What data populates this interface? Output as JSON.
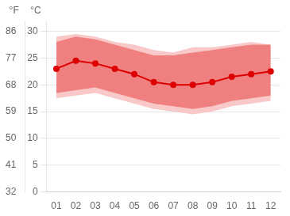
{
  "chart_data": {
    "type": "line",
    "x": [
      1,
      2,
      3,
      4,
      5,
      6,
      7,
      8,
      9,
      10,
      11,
      12
    ],
    "series": [
      {
        "type": "band",
        "color": "#f9c8c8",
        "low": [
          17.5,
          18.0,
          18.5,
          17.5,
          16.5,
          15.5,
          15.0,
          14.5,
          15.0,
          16.0,
          16.5,
          17.0
        ],
        "high": [
          29.0,
          29.5,
          29.0,
          28.0,
          27.5,
          26.5,
          26.0,
          27.0,
          27.0,
          27.5,
          28.0,
          27.5
        ]
      },
      {
        "type": "band",
        "color": "#f08080",
        "low": [
          18.5,
          19.0,
          19.5,
          18.5,
          17.5,
          16.5,
          16.0,
          15.5,
          16.0,
          17.0,
          17.5,
          18.0
        ],
        "high": [
          28.0,
          29.0,
          28.5,
          27.5,
          26.5,
          25.5,
          25.5,
          26.0,
          26.5,
          27.0,
          27.5,
          27.5
        ]
      },
      {
        "type": "line",
        "color": "#dd0000",
        "marker": "circle",
        "values": [
          23.0,
          24.5,
          24.0,
          23.0,
          22.0,
          20.5,
          20.0,
          20.0,
          20.5,
          21.5,
          22.0,
          22.5
        ]
      }
    ],
    "xlim": [
      0.5,
      12.5
    ],
    "xticks": [
      {
        "value": 1,
        "label": "01"
      },
      {
        "value": 2,
        "label": "02"
      },
      {
        "value": 3,
        "label": "03"
      },
      {
        "value": 4,
        "label": "04"
      },
      {
        "value": 5,
        "label": "05"
      },
      {
        "value": 6,
        "label": "06"
      },
      {
        "value": 7,
        "label": "07"
      },
      {
        "value": 8,
        "label": "08"
      },
      {
        "value": 9,
        "label": "09"
      },
      {
        "value": 10,
        "label": "10"
      },
      {
        "value": 11,
        "label": "11"
      },
      {
        "value": 12,
        "label": "12"
      }
    ],
    "ylim": [
      0,
      32
    ],
    "yticks": [
      0,
      5,
      10,
      15,
      20,
      25,
      30
    ],
    "ylabel": "°C",
    "y2lim": [
      32,
      89.6
    ],
    "y2ticks": [
      32,
      41,
      50,
      59,
      68,
      77,
      86
    ],
    "y2label": "°F",
    "grid": true
  }
}
